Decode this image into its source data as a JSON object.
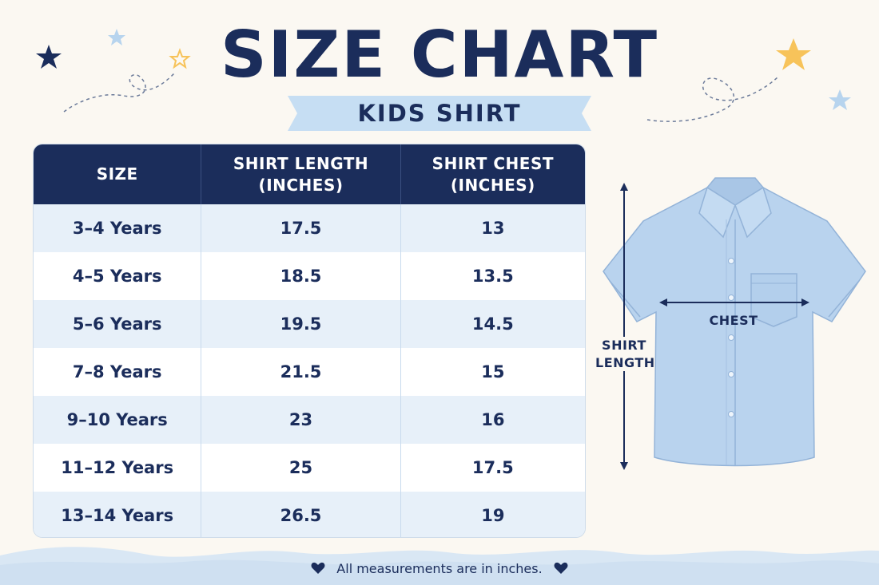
{
  "title": "SIZE CHART",
  "subtitle": "KIDS SHIRT",
  "table": {
    "headers": [
      {
        "line1": "SIZE",
        "line2": ""
      },
      {
        "line1": "SHIRT LENGTH",
        "line2": "(INCHES)"
      },
      {
        "line1": "SHIRT CHEST",
        "line2": "(INCHES)"
      }
    ],
    "rows": [
      {
        "size": "3–4 Years",
        "length": "17.5",
        "chest": "13"
      },
      {
        "size": "4–5 Years",
        "length": "18.5",
        "chest": "13.5"
      },
      {
        "size": "5–6 Years",
        "length": "19.5",
        "chest": "14.5"
      },
      {
        "size": "7–8 Years",
        "length": "21.5",
        "chest": "15"
      },
      {
        "size": "9–10 Years",
        "length": "23",
        "chest": "16"
      },
      {
        "size": "11–12 Years",
        "length": "25",
        "chest": "17.5"
      },
      {
        "size": "13–14 Years",
        "length": "26.5",
        "chest": "19"
      }
    ]
  },
  "diagram": {
    "chest_label": "CHEST",
    "length_label_line1": "SHIRT",
    "length_label_line2": "LENGTH"
  },
  "footer": {
    "note": "All measurements are in inches.",
    "left_icon": "heart-icon",
    "right_icon": "heart-icon"
  },
  "colors": {
    "navy": "#1b2d5b",
    "row_alt": "#e7f0f9",
    "shirt_blue": "#b9d3ee",
    "star_gold": "#f7c35a",
    "star_light_blue": "#b7d4ee",
    "background": "#fbf8f2"
  }
}
